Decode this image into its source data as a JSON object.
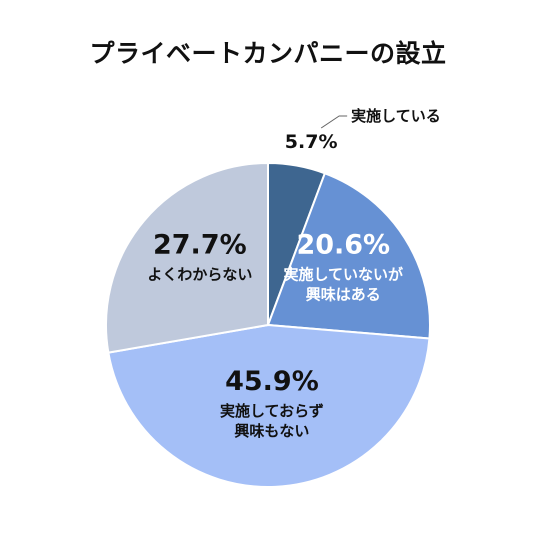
{
  "chart_data": {
    "type": "pie",
    "title": "プライベートカンパニーの設立",
    "slices": [
      {
        "label": [
          "実施している"
        ],
        "value": 5.7,
        "value_label": "5.7%",
        "color": "#3e6690"
      },
      {
        "label": [
          "実施していないが",
          "興味はある"
        ],
        "value": 20.6,
        "value_label": "20.6%",
        "color": "#6691d4"
      },
      {
        "label": [
          "実施しておらず",
          "興味もない"
        ],
        "value": 45.9,
        "value_label": "45.9%",
        "color": "#a4bff7"
      },
      {
        "label": [
          "よくわからない"
        ],
        "value": 27.7,
        "value_label": "27.7%",
        "color": "#bfc9dc"
      }
    ]
  }
}
